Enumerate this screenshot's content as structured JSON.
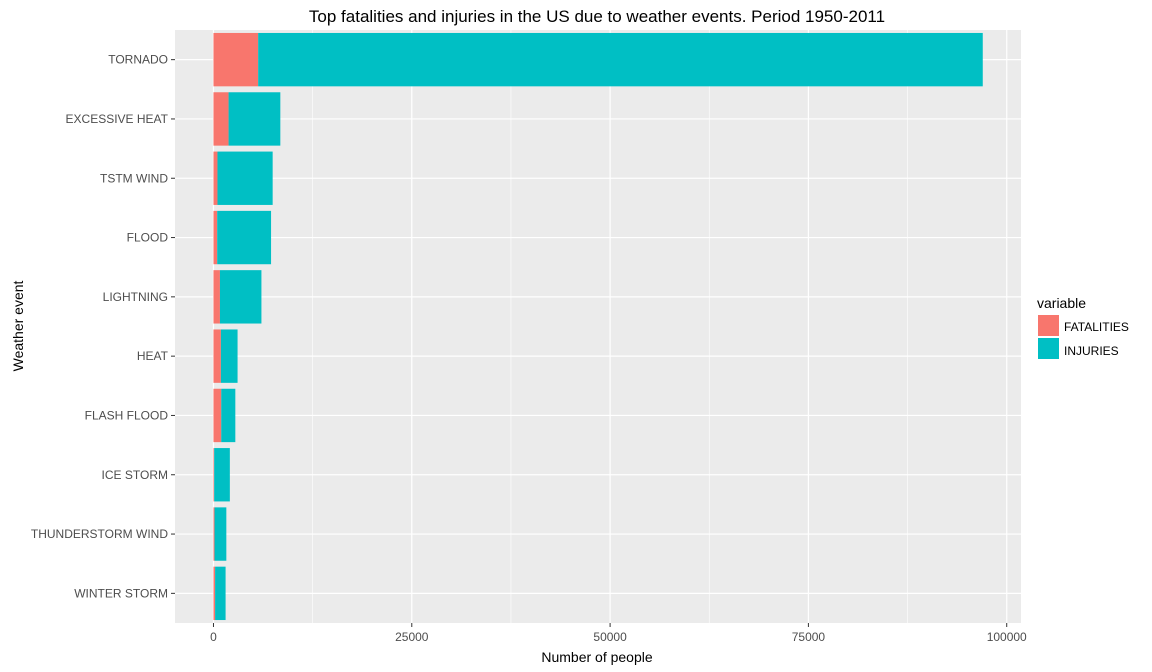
{
  "chart_data": {
    "type": "bar",
    "orientation": "horizontal",
    "stacked": true,
    "title": "Top fatalities and injuries in the US due to weather events. Period 1950-2011",
    "xlabel": "Number of people",
    "ylabel": "Weather event",
    "xlim": [
      -4850,
      101800
    ],
    "x_ticks": [
      0,
      25000,
      50000,
      75000,
      100000
    ],
    "x_tick_labels": [
      "0",
      "25000",
      "50000",
      "75000",
      "100000"
    ],
    "categories": [
      "TORNADO",
      "EXCESSIVE HEAT",
      "TSTM WIND",
      "FLOOD",
      "LIGHTNING",
      "HEAT",
      "FLASH FLOOD",
      "ICE STORM",
      "THUNDERSTORM WIND",
      "WINTER STORM"
    ],
    "series": [
      {
        "name": "FATALITIES",
        "color": "#F8766D",
        "values": [
          5633,
          1903,
          504,
          470,
          816,
          937,
          978,
          89,
          133,
          206
        ]
      },
      {
        "name": "INJURIES",
        "color": "#00BFC4",
        "values": [
          91346,
          6525,
          6957,
          6789,
          5230,
          2100,
          1777,
          1975,
          1488,
          1321
        ]
      }
    ],
    "legend": {
      "title": "variable",
      "placement": "right"
    },
    "grid": true,
    "panel_background": "#EBEBEB",
    "grid_color": "#FFFFFF"
  }
}
